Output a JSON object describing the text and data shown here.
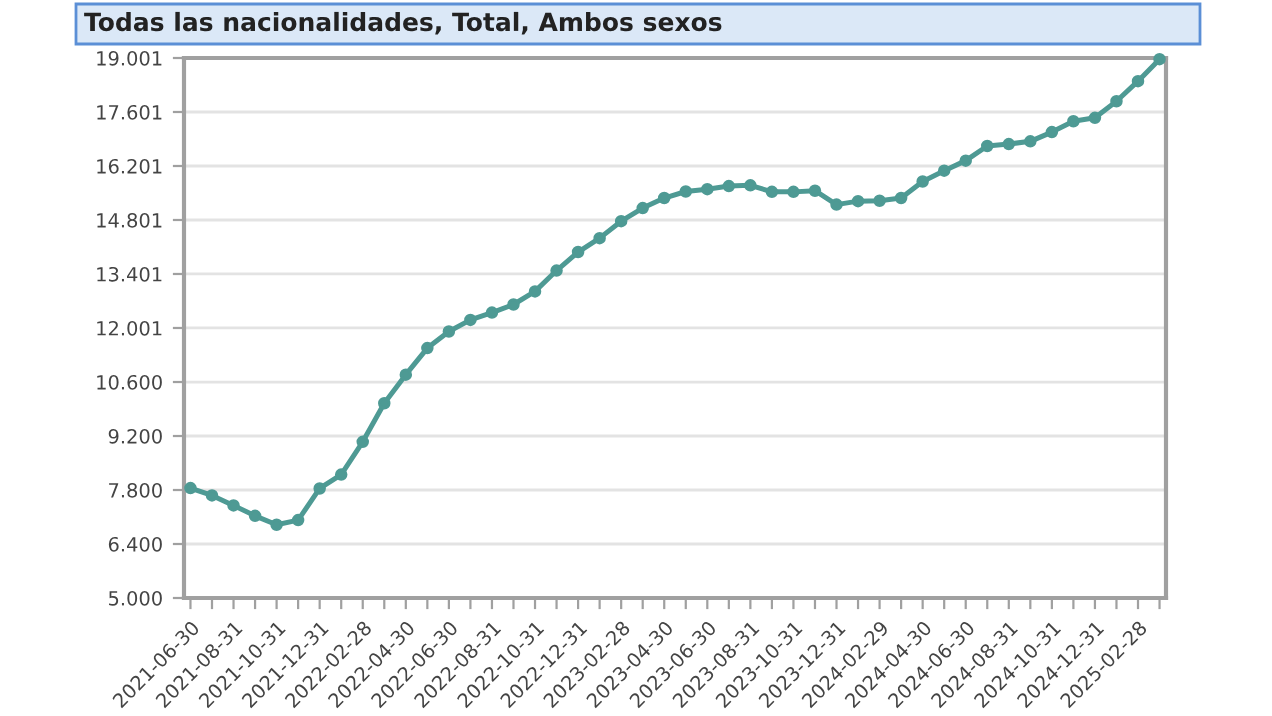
{
  "chart_data": {
    "type": "line",
    "title": "Todas las nacionalidades, Total, Ambos sexos",
    "categories": [
      "2021-06-30",
      null,
      "2021-08-31",
      null,
      "2021-10-31",
      null,
      "2021-12-31",
      null,
      "2022-02-28",
      null,
      "2022-04-30",
      null,
      "2022-06-30",
      null,
      "2022-08-31",
      null,
      "2022-10-31",
      null,
      "2022-12-31",
      null,
      "2023-02-28",
      null,
      "2023-04-30",
      null,
      "2023-06-30",
      null,
      "2023-08-31",
      null,
      "2023-10-31",
      null,
      "2023-12-31",
      null,
      "2024-02-29",
      null,
      "2024-04-30",
      null,
      "2024-06-30",
      null,
      "2024-08-31",
      null,
      "2024-10-31",
      null,
      "2024-12-31",
      null,
      "2025-02-28",
      null
    ],
    "series": [
      {
        "color": "#4e9a94",
        "values": [
          7850,
          7660,
          7400,
          7130,
          6900,
          7020,
          7840,
          8200,
          9050,
          10050,
          10790,
          11480,
          11910,
          12210,
          12400,
          12610,
          12950,
          13490,
          13970,
          14330,
          14770,
          15110,
          15370,
          15540,
          15600,
          15680,
          15700,
          15530,
          15530,
          15560,
          15200,
          15290,
          15300,
          15370,
          15800,
          16080,
          16340,
          16720,
          16770,
          16840,
          17080,
          17360,
          17450,
          17880,
          18400,
          18970
        ]
      }
    ],
    "ylim": [
      5000,
      19001
    ],
    "yticks": [
      {
        "value": 5000,
        "label": "5.000"
      },
      {
        "value": 6400,
        "label": "6.400"
      },
      {
        "value": 7800,
        "label": "7.800"
      },
      {
        "value": 9200,
        "label": "9.200"
      },
      {
        "value": 10600,
        "label": "10.600"
      },
      {
        "value": 12001,
        "label": "12.001"
      },
      {
        "value": 13401,
        "label": "13.401"
      },
      {
        "value": 14801,
        "label": "14.801"
      },
      {
        "value": 16201,
        "label": "16.201"
      },
      {
        "value": 17601,
        "label": "17.601"
      },
      {
        "value": 19001,
        "label": "19.001"
      }
    ],
    "grid": "y",
    "marker": "circle",
    "line_style": "solid"
  }
}
